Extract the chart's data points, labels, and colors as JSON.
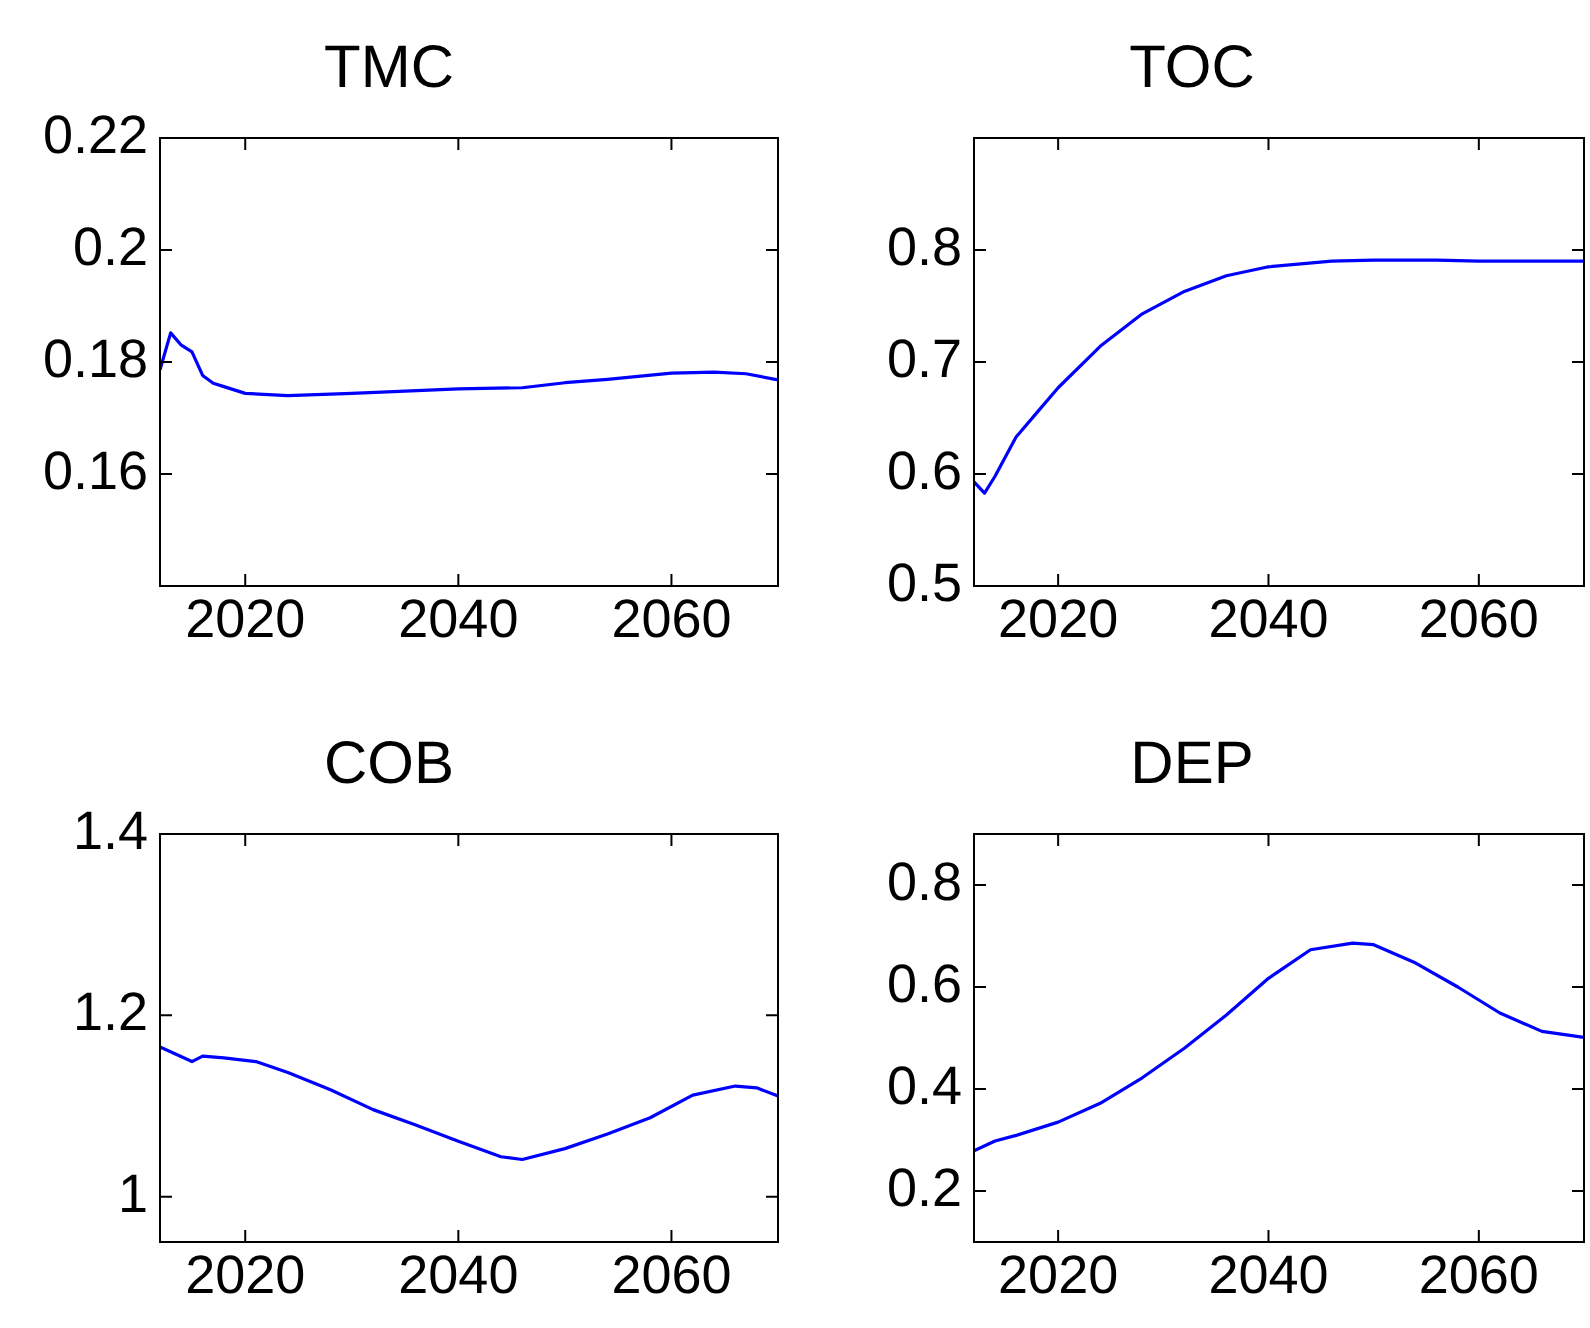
{
  "chart_data": [
    {
      "type": "line",
      "title": "TMC",
      "x": [
        2012,
        2013,
        2014,
        2015,
        2016,
        2017,
        2018,
        2020,
        2024,
        2030,
        2040,
        2046,
        2050,
        2054,
        2060,
        2064,
        2067,
        2070
      ],
      "series": [
        {
          "color": "#0000ff",
          "values": [
            0.1786,
            0.1852,
            0.183,
            0.1818,
            0.1776,
            0.1762,
            0.1756,
            0.1744,
            0.174,
            0.1744,
            0.1752,
            0.1754,
            0.1763,
            0.1769,
            0.178,
            0.1782,
            0.1779,
            0.1768
          ]
        }
      ],
      "xlim": [
        2012,
        2070
      ],
      "xticks": [
        2020,
        2040,
        2060
      ],
      "ylim": [
        0.14,
        0.22
      ],
      "yticks": [
        0.16,
        0.18,
        0.2,
        0.22
      ],
      "grid": false,
      "marker": "none",
      "line_style": "solid"
    },
    {
      "type": "line",
      "title": "TOC",
      "x": [
        2012,
        2013,
        2014,
        2016,
        2018,
        2020,
        2024,
        2028,
        2032,
        2036,
        2040,
        2046,
        2050,
        2056,
        2060,
        2070
      ],
      "series": [
        {
          "color": "#0000ff",
          "values": [
            0.593,
            0.583,
            0.598,
            0.633,
            0.655,
            0.677,
            0.714,
            0.743,
            0.763,
            0.777,
            0.785,
            0.79,
            0.791,
            0.791,
            0.79,
            0.79
          ]
        }
      ],
      "xlim": [
        2012,
        2070
      ],
      "xticks": [
        2020,
        2040,
        2060
      ],
      "ylim": [
        0.5,
        0.9
      ],
      "yticks": [
        0.5,
        0.6,
        0.7,
        0.8
      ],
      "grid": false,
      "marker": "none",
      "line_style": "solid"
    },
    {
      "type": "line",
      "title": "COB",
      "x": [
        2012,
        2015,
        2016,
        2018,
        2021,
        2024,
        2028,
        2032,
        2036,
        2040,
        2044,
        2046,
        2050,
        2054,
        2058,
        2062,
        2066,
        2068,
        2070
      ],
      "series": [
        {
          "color": "#0000ff",
          "values": [
            1.165,
            1.149,
            1.155,
            1.153,
            1.149,
            1.137,
            1.118,
            1.096,
            1.079,
            1.061,
            1.044,
            1.041,
            1.053,
            1.069,
            1.087,
            1.112,
            1.122,
            1.12,
            1.111
          ]
        }
      ],
      "xlim": [
        2012,
        2070
      ],
      "xticks": [
        2020,
        2040,
        2060
      ],
      "ylim": [
        0.95,
        1.4
      ],
      "yticks": [
        1,
        1.2,
        1.4
      ],
      "grid": false,
      "marker": "none",
      "line_style": "solid"
    },
    {
      "type": "line",
      "title": "DEP",
      "x": [
        2012,
        2014,
        2016,
        2020,
        2024,
        2028,
        2032,
        2036,
        2040,
        2044,
        2048,
        2050,
        2054,
        2058,
        2062,
        2066,
        2070
      ],
      "series": [
        {
          "color": "#0000ff",
          "values": [
            0.279,
            0.298,
            0.309,
            0.335,
            0.372,
            0.422,
            0.48,
            0.545,
            0.617,
            0.673,
            0.686,
            0.683,
            0.647,
            0.6,
            0.549,
            0.513,
            0.501
          ]
        }
      ],
      "xlim": [
        2012,
        2070
      ],
      "xticks": [
        2020,
        2040,
        2060
      ],
      "ylim": [
        0.1,
        0.9
      ],
      "yticks": [
        0.2,
        0.4,
        0.6,
        0.8
      ],
      "grid": false,
      "marker": "none",
      "line_style": "solid"
    }
  ]
}
